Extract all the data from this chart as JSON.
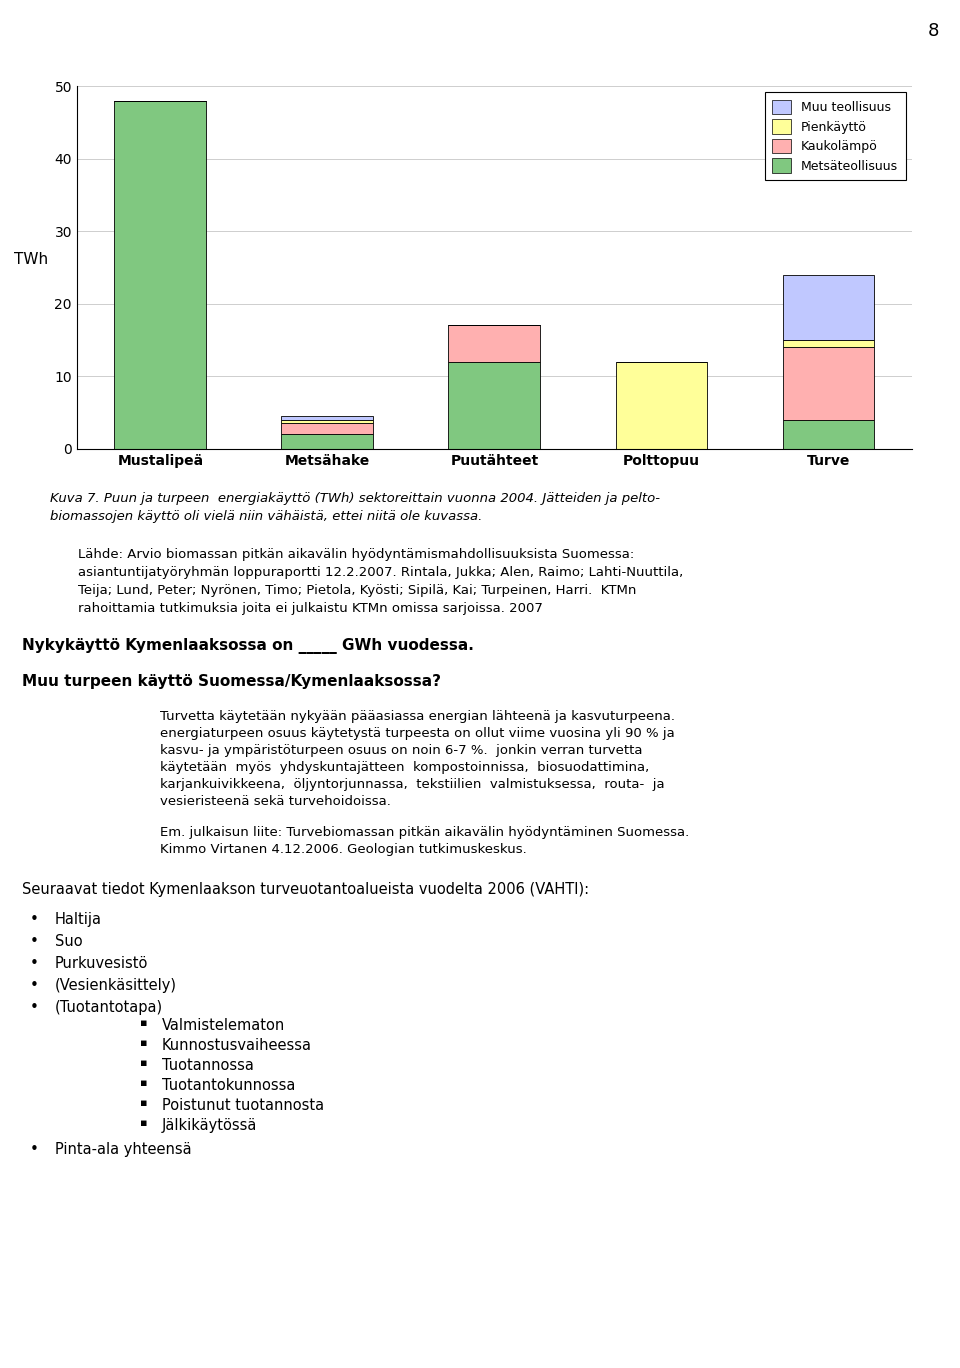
{
  "categories": [
    "Mustalipeä",
    "Metsähake",
    "Puutähteet",
    "Polttopuu",
    "Turve"
  ],
  "series": {
    "Metsäteollisuus": [
      48.0,
      2.0,
      12.0,
      0.0,
      4.0
    ],
    "Kaukolämpö": [
      0.0,
      1.5,
      5.0,
      0.0,
      10.0
    ],
    "Pienkäyttö": [
      0.0,
      0.5,
      0.0,
      12.0,
      1.0
    ],
    "Muu teollisuus": [
      0.0,
      0.5,
      0.0,
      0.0,
      9.0
    ]
  },
  "colors": {
    "Metsäteollisuus": "#80C880",
    "Kaukolämpö": "#FFB0B0",
    "Pienkäyttö": "#FFFF99",
    "Muu teollisuus": "#C0C8FF"
  },
  "legend_order": [
    "Muu teollisuus",
    "Pienkäyttö",
    "Kaukolämpö",
    "Metsäteollisuus"
  ],
  "ylabel": "TWh",
  "ylim": [
    0,
    50
  ],
  "yticks": [
    0,
    10,
    20,
    30,
    40,
    50
  ],
  "fig_caption_line1": "Kuva 7. Puun ja turpeen  energiakäyttö (TWh) sektoreittain vuonna 2004. Jätteiden ja pelto-",
  "fig_caption_line2": "biomassojen käyttö oli vielä niin vähäistä, ettei niitä ole kuvassa.",
  "source_line1": "Lähde: Arvio biomassan pitkän aikavälin hyödyntämismahdollisuuksista Suomessa:",
  "source_line2": "asiantuntijatyöryhmän loppuraportti 12.2.2007. Rintala, Jukka; Alen, Raimo; Lahti-Nuuttila,",
  "source_line3": "Teija; Lund, Peter; Nyrönen, Timo; Pietola, Kyösti; Sipilä, Kai; Turpeinen, Harri.  KTMn",
  "source_line4": "rahoittamia tutkimuksia joita ei julkaistu KTMn omissa sarjoissa. 2007",
  "question1": "Nykykäyttö Kymenlaaksossa on _____ GWh vuodessa.",
  "question2": "Muu turpeen käyttö Suomessa/Kymenlaaksossa?",
  "para1_line1": "Turvetta käytetään nykyään pääasiassa energian lähteenä ja kasvuturpeena.",
  "para1_line2": "energiaturpeen osuus käytetystä turpeesta on ollut viime vuosina yli 90 % ja",
  "para1_line3": "kasvu- ja ympäristöturpeen osuus on noin 6-7 %.  jonkin verran turvetta",
  "para1_line4": "käytetään  myös  yhdyskuntajätteen  kompostoinnissa,  biosuodattimina,",
  "para1_line5": "karjankuivikkeena,  öljyntorjunnassa,  tekstiilien  valmistuksessa,  routa-  ja",
  "para1_line6": "vesieristeenä sekä turvehoidoissa.",
  "para2_line1": "Em. julkaisun liite: Turvebiomassan pitkän aikavälin hyödyntäminen Suomessa.",
  "para2_line2": "Kimmo Virtanen 4.12.2006. Geologian tutkimuskeskus.",
  "section_header": "Seuraavat tiedot Kymenlaakson turveuotantoalueista vuodelta 2006 (VAHTI):",
  "bullet_items": [
    "Haltija",
    "Suo",
    "Purkuvesistö",
    "(Vesienkäsittely)",
    "(Tuotantotapa)"
  ],
  "sub_bullet_items": [
    "Valmistelematon",
    "Kunnostusvaiheessa",
    "Tuotannossa",
    "Tuotantokunnossa",
    "Poistunut tuotannosta",
    "Jälkikäytössä"
  ],
  "last_bullet": "Pinta-ala yhteensä",
  "page_number": "8",
  "background_color": "#ffffff"
}
